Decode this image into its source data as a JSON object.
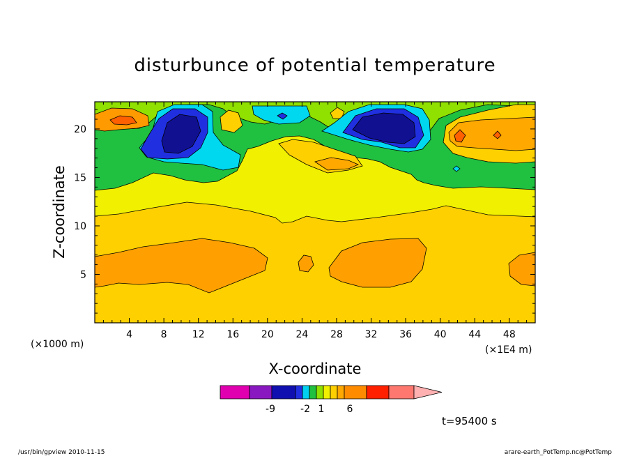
{
  "chart_data": {
    "type": "heatmap",
    "title": "disturbunce of potential temperature",
    "xlabel": "X-coordinate",
    "ylabel": "Z-coordinate",
    "x_unit_left": "(×1000 m)",
    "x_unit_right": "(×1E4 m)",
    "xlim": [
      0,
      51
    ],
    "ylim": [
      0,
      22.8
    ],
    "x_ticks": [
      4,
      8,
      12,
      16,
      20,
      24,
      28,
      32,
      36,
      40,
      44,
      48
    ],
    "y_ticks": [
      5,
      10,
      15,
      20
    ],
    "colorbar": {
      "colors": [
        "#e000b0",
        "#8a18c0",
        "#1010b0",
        "#2030e0",
        "#00d0f0",
        "#20c040",
        "#90e000",
        "#f0f000",
        "#ffd000",
        "#ffa800",
        "#ff8c00",
        "#ff2000",
        "#ff7870",
        "#ffb0b0"
      ],
      "labels": [
        "-9",
        "-2",
        "1",
        "6"
      ]
    },
    "time_label": "t=95400 s",
    "footer_left": "/usr/bin/gpview   2010-11-15",
    "footer_right": "arare-earth_PotTemp.nc@PotTemp"
  }
}
